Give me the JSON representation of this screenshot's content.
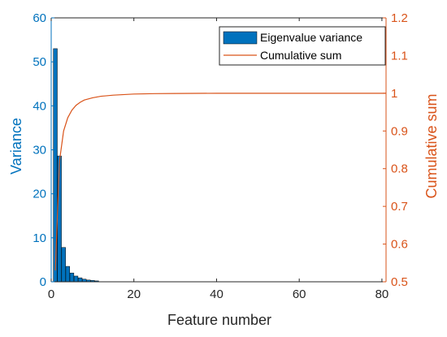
{
  "chart_data": {
    "type": "bar",
    "xlabel": "Feature number",
    "ylabel_left": "Variance",
    "ylabel_right": "Cumulative sum",
    "xlim": [
      0,
      81
    ],
    "xticks": [
      0,
      20,
      40,
      60,
      80
    ],
    "ylim_left": [
      0,
      60
    ],
    "yticks_left": [
      0,
      10,
      20,
      30,
      40,
      50,
      60
    ],
    "ylim_right": [
      0.5,
      1.2
    ],
    "yticks_right": [
      0.5,
      0.6,
      0.7,
      0.8,
      0.9,
      1,
      1.1,
      1.2
    ],
    "grid": false,
    "legend_position": "top-right",
    "series": [
      {
        "name": "Eigenvalue variance",
        "kind": "bar",
        "axis": "left",
        "color": "#0072BD",
        "x": [
          1,
          2,
          3,
          4,
          5,
          6,
          7,
          8,
          9,
          10,
          11
        ],
        "values": [
          53.0,
          28.6,
          7.8,
          3.5,
          2.0,
          1.3,
          0.9,
          0.6,
          0.4,
          0.3,
          0.2
        ]
      },
      {
        "name": "Cumulative sum",
        "kind": "line",
        "axis": "right",
        "color": "#D95319",
        "x": [
          1,
          2,
          3,
          4,
          5,
          6,
          7,
          8,
          10,
          12,
          15,
          20,
          25,
          30,
          40,
          50,
          60,
          70,
          81
        ],
        "values": [
          0.53,
          0.82,
          0.9,
          0.935,
          0.955,
          0.968,
          0.976,
          0.982,
          0.988,
          0.992,
          0.995,
          0.998,
          0.999,
          0.9995,
          1.0,
          1.0,
          1.0,
          1.0,
          1.0
        ]
      }
    ]
  },
  "colors": {
    "left_axis": "#0072BD",
    "right_axis": "#D95319",
    "bar_fill": "#0072BD",
    "line": "#D95319"
  }
}
